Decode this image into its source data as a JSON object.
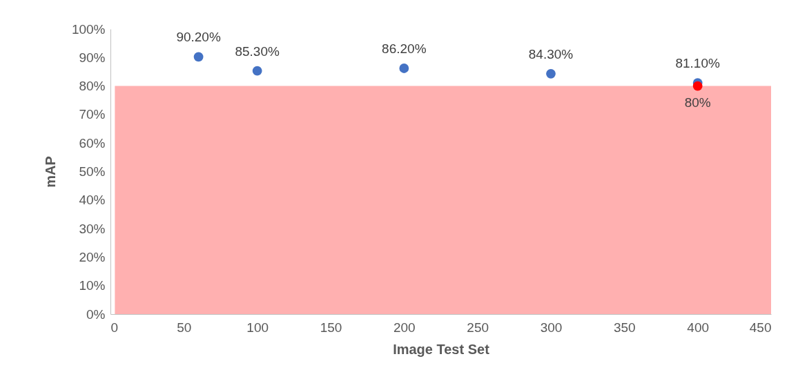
{
  "chart_data": {
    "type": "scatter",
    "xlabel": "Image Test Set",
    "ylabel": "mAP",
    "xlim": [
      0,
      450
    ],
    "xticks": [
      0,
      50,
      100,
      150,
      200,
      250,
      300,
      350,
      400,
      450
    ],
    "ylim": [
      0,
      100
    ],
    "yticks": [
      {
        "value": 0,
        "label": "0%"
      },
      {
        "value": 10,
        "label": "10%"
      },
      {
        "value": 20,
        "label": "20%"
      },
      {
        "value": 30,
        "label": "30%"
      },
      {
        "value": 40,
        "label": "40%"
      },
      {
        "value": 50,
        "label": "50%"
      },
      {
        "value": 60,
        "label": "60%"
      },
      {
        "value": 70,
        "label": "70%"
      },
      {
        "value": 80,
        "label": "80%"
      },
      {
        "value": 90,
        "label": "90%"
      },
      {
        "value": 100,
        "label": "100%"
      }
    ],
    "grid": false,
    "series": [
      {
        "type": "area",
        "color": "#ffb0b0",
        "x": [
          3,
          450
        ],
        "values": [
          80,
          80
        ]
      },
      {
        "color": "#4472c4",
        "x": [
          60,
          100,
          200,
          300,
          400
        ],
        "values": [
          90.2,
          85.3,
          86.2,
          84.3,
          81.1
        ],
        "value_labels": [
          "90.20%",
          "85.30%",
          "86.20%",
          "84.30%",
          "81.10%"
        ]
      },
      {
        "color": "#ff0000",
        "x": [
          400
        ],
        "values": [
          80
        ],
        "value_labels": [
          "80%"
        ]
      }
    ]
  }
}
